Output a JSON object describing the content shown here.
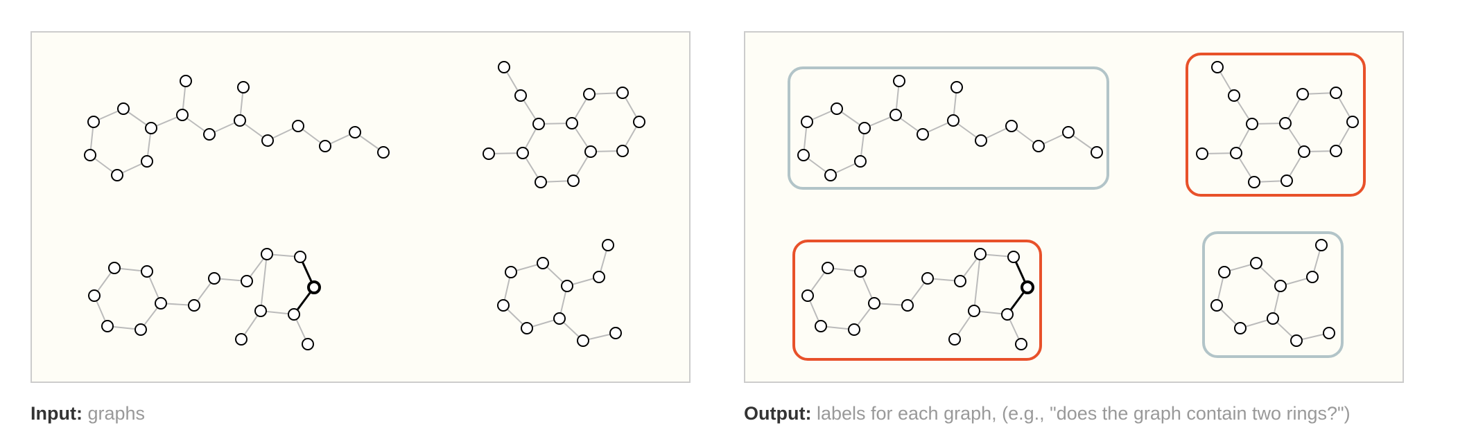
{
  "captions": {
    "input": {
      "label": "Input:",
      "text": "graphs"
    },
    "output": {
      "label": "Output:",
      "text": "labels for each graph, (e.g., \"does the graph contain two rings?\")"
    }
  },
  "colors": {
    "panel_fill": "#fefdf6",
    "panel_border": "#cccccc",
    "edge": "#bbbbbb",
    "edge_highlight": "#000000",
    "node_stroke": "#000000",
    "node_fill": "#ffffff",
    "label_true": "#e8512a",
    "label_false": "#b2c4c8"
  },
  "graph_labels": [
    "false",
    "true",
    "true",
    "false"
  ]
}
